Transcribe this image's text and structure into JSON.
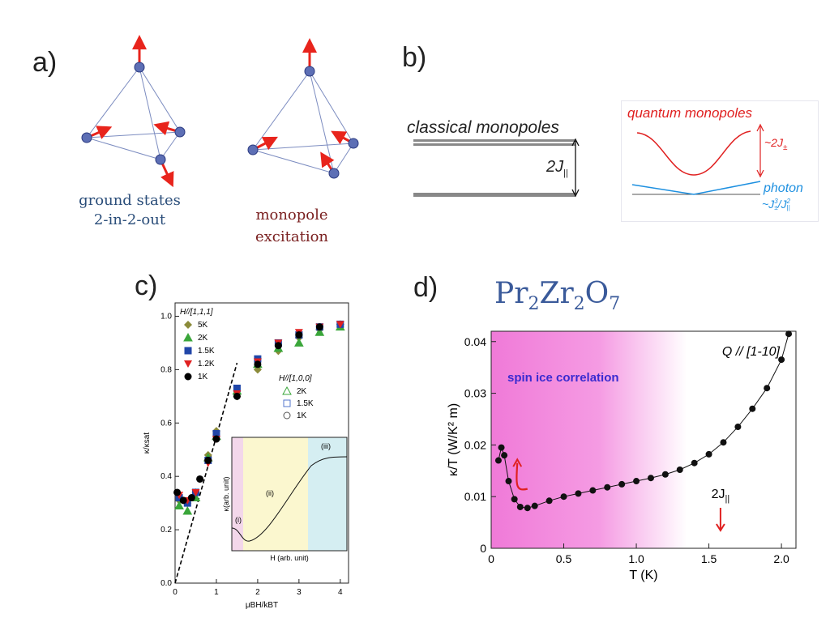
{
  "panel_labels": {
    "a": "a)",
    "b": "b)",
    "c": "c)",
    "d": "d)"
  },
  "panel_a": {
    "caption_left": [
      "ground states",
      "2-in-2-out"
    ],
    "caption_right": [
      "monopole",
      "excitation"
    ],
    "colors": {
      "caption_left": "#2b4e7a",
      "caption_right": "#7a2020",
      "arrow": "#e8241c",
      "node": "#5d6fb5"
    }
  },
  "panel_b": {
    "classical_label": "classical monopoles",
    "gap_label": "2J",
    "gap_sub": "||",
    "quantum_label": "quantum monopoles",
    "quantum_gap": "~2J",
    "quantum_gap_sub": "±",
    "photon_label": "photon",
    "photon_scale": "~J",
    "photon_scale_sup": "3",
    "photon_scale_sub": "±",
    "photon_scale_tail": "/J",
    "photon_scale_tail_sup": "2",
    "photon_scale_tail_sub": "||",
    "colors": {
      "quantum": "#e02020",
      "photon": "#1e90e0"
    }
  },
  "panel_c": {
    "legend_title_111": "H//[1,1,1]",
    "legend_111": [
      {
        "label": "5K",
        "color": "#8b8b3a",
        "marker": "diamond"
      },
      {
        "label": "2K",
        "color": "#3aa63a",
        "marker": "triangle"
      },
      {
        "label": "1.5K",
        "color": "#2146a8",
        "marker": "square"
      },
      {
        "label": "1.2K",
        "color": "#e02020",
        "marker": "triangle-down"
      },
      {
        "label": "1K",
        "color": "#000000",
        "marker": "circle"
      }
    ],
    "legend_title_100": "H//[1,0,0]",
    "legend_100": [
      {
        "label": "2K",
        "color": "#3aa63a",
        "marker": "triangle-open"
      },
      {
        "label": "1.5K",
        "color": "#5577cc",
        "marker": "square-open"
      },
      {
        "label": "1K",
        "color": "#555555",
        "marker": "circle-open"
      }
    ],
    "ylabel": "κ/κsat",
    "xlabel": "μBH/kBT",
    "x_ticks": [
      "0",
      "1",
      "2",
      "3",
      "4"
    ],
    "y_ticks": [
      "0.0",
      "0.2",
      "0.4",
      "0.6",
      "0.8",
      "1.0"
    ],
    "inset": {
      "xlabel": "H (arb. unit)",
      "ylabel": "κ(arb. unit)",
      "regions": [
        "(i)",
        "(ii)",
        "(iii)"
      ]
    }
  },
  "panel_d": {
    "formula_parts": [
      "Pr",
      "2",
      "Zr",
      "2",
      "O",
      "7"
    ],
    "ylabel": "κ/T (W/K² m)",
    "xlabel": "T (K)",
    "direction": "Q // [1-10]",
    "shading_label": "spin ice correlation",
    "marker_label": "2J",
    "marker_sub": "||",
    "x_ticks": [
      "0",
      "0.5",
      "1.0",
      "1.5",
      "2.0"
    ],
    "y_ticks": [
      "0",
      "0.01",
      "0.02",
      "0.03",
      "0.04"
    ]
  },
  "chart_data": [
    {
      "type": "scatter",
      "xlabel": "μBH/kBT",
      "ylabel": "κ/κsat",
      "xlim": [
        0,
        4.2
      ],
      "ylim": [
        0,
        1.05
      ],
      "series": [
        {
          "name": "5K",
          "x": [
            0.1,
            0.3,
            0.5,
            0.8,
            1.0,
            1.5,
            2.0,
            2.5,
            3.0,
            3.5,
            4.0
          ],
          "y": [
            0.31,
            0.3,
            0.34,
            0.48,
            0.57,
            0.7,
            0.8,
            0.87,
            0.92,
            0.95,
            0.97
          ]
        },
        {
          "name": "2K",
          "x": [
            0.1,
            0.3,
            0.5,
            0.8,
            1.0,
            1.5,
            2.0,
            2.5,
            3.0,
            3.5,
            4.0
          ],
          "y": [
            0.29,
            0.27,
            0.32,
            0.47,
            0.55,
            0.72,
            0.82,
            0.88,
            0.9,
            0.94,
            0.96
          ]
        },
        {
          "name": "1.5K",
          "x": [
            0.1,
            0.3,
            0.5,
            0.8,
            1.0,
            1.5,
            2.0,
            2.5,
            3.0,
            3.5,
            4.0
          ],
          "y": [
            0.32,
            0.3,
            0.34,
            0.46,
            0.56,
            0.73,
            0.84,
            0.9,
            0.93,
            0.96,
            0.97
          ]
        },
        {
          "name": "1.2K",
          "x": [
            0.1,
            0.3,
            0.5,
            0.8,
            1.0,
            1.5,
            2.0,
            2.5,
            3.0,
            3.5,
            4.0
          ],
          "y": [
            0.33,
            0.31,
            0.34,
            0.45,
            0.54,
            0.71,
            0.83,
            0.9,
            0.94,
            0.96,
            0.97
          ]
        },
        {
          "name": "1K",
          "x": [
            0.05,
            0.2,
            0.4,
            0.6,
            0.8,
            1.0,
            1.5,
            2.0,
            2.5,
            3.0,
            3.5
          ],
          "y": [
            0.34,
            0.31,
            0.32,
            0.39,
            0.46,
            0.54,
            0.7,
            0.82,
            0.89,
            0.93,
            0.96
          ]
        }
      ]
    },
    {
      "type": "line",
      "xlabel": "T (K)",
      "ylabel": "κ/T (W/K² m)",
      "xlim": [
        0,
        2.1
      ],
      "ylim": [
        0,
        0.042
      ],
      "x": [
        0.05,
        0.07,
        0.09,
        0.12,
        0.16,
        0.2,
        0.25,
        0.3,
        0.4,
        0.5,
        0.6,
        0.7,
        0.8,
        0.9,
        1.0,
        1.1,
        1.2,
        1.3,
        1.4,
        1.5,
        1.6,
        1.7,
        1.8,
        1.9,
        2.0,
        2.05
      ],
      "y": [
        0.017,
        0.0195,
        0.018,
        0.013,
        0.0095,
        0.008,
        0.0078,
        0.0082,
        0.0092,
        0.01,
        0.0106,
        0.0112,
        0.0118,
        0.0124,
        0.013,
        0.0136,
        0.0143,
        0.0152,
        0.0165,
        0.0182,
        0.0205,
        0.0235,
        0.027,
        0.031,
        0.0365,
        0.0415
      ]
    }
  ]
}
